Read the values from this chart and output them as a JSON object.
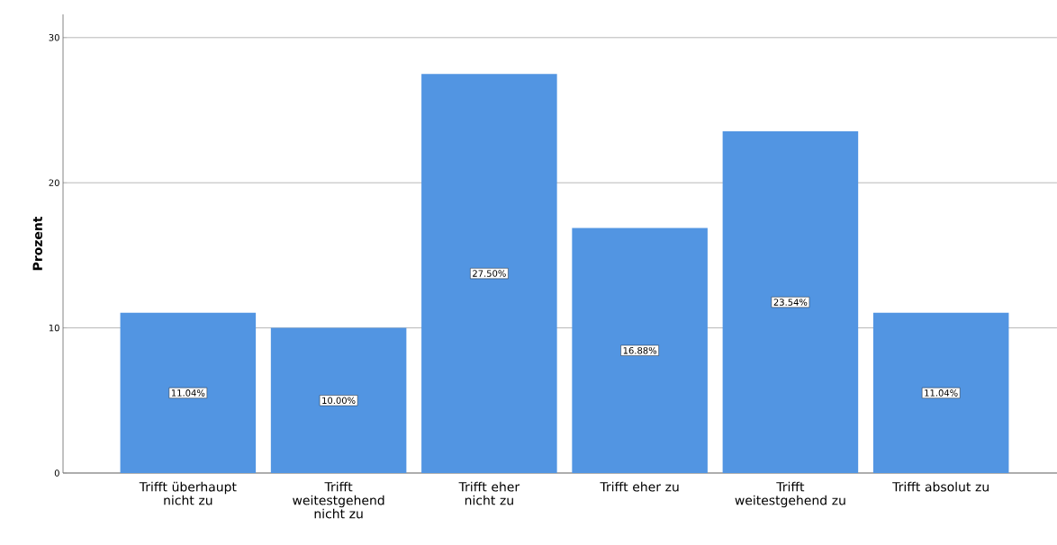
{
  "chart_data": {
    "type": "bar",
    "ylabel": "Prozent",
    "categories": [
      "Trifft überhaupt nicht zu",
      "Trifft weitestgehend nicht zu",
      "Trifft eher nicht zu",
      "Trifft eher zu",
      "Trifft weitestgehend zu",
      "Trifft absolut zu"
    ],
    "values": [
      11.04,
      10.0,
      27.5,
      16.88,
      23.54,
      11.04
    ],
    "value_labels": [
      "11.04%",
      "10.00%",
      "27.50%",
      "16.88%",
      "23.54%",
      "11.04%"
    ],
    "color": "#5295e2",
    "ylim": [
      0,
      31.6
    ],
    "yticks": [
      0,
      10,
      20,
      30
    ],
    "grid": "y"
  }
}
